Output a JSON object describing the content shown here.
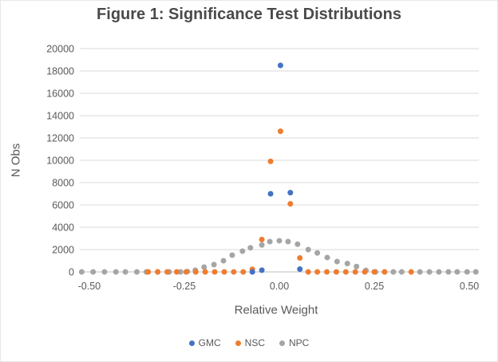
{
  "chart_data": {
    "type": "scatter",
    "title": "Figure 1: Significance Test Distributions",
    "xlabel": "Relative Weight",
    "ylabel": "N Obs",
    "xlim": [
      -0.525,
      0.525
    ],
    "ylim": [
      0,
      20000
    ],
    "x_ticks": [
      "-0.50",
      "-0.25",
      "0.00",
      "0.25",
      "0.50"
    ],
    "x_tick_values": [
      -0.5,
      -0.25,
      0,
      0.25,
      0.5
    ],
    "y_ticks": [
      "0",
      "2000",
      "4000",
      "6000",
      "8000",
      "10000",
      "12000",
      "14000",
      "16000",
      "18000",
      "20000"
    ],
    "y_tick_values": [
      0,
      2000,
      4000,
      6000,
      8000,
      10000,
      12000,
      14000,
      16000,
      18000,
      20000
    ],
    "grid": "horizontal-major",
    "legend_position": "bottom",
    "marker": "circle",
    "series": [
      {
        "name": "GMC",
        "color": "#4472C4",
        "points": [
          [
            -0.071,
            0
          ],
          [
            -0.046,
            150
          ],
          [
            -0.023,
            7000
          ],
          [
            0.003,
            18500
          ],
          [
            0.029,
            7100
          ],
          [
            0.054,
            250
          ]
        ]
      },
      {
        "name": "NSC",
        "color": "#ED7D31",
        "points": [
          [
            -0.345,
            0
          ],
          [
            -0.32,
            0
          ],
          [
            -0.295,
            0
          ],
          [
            -0.27,
            0
          ],
          [
            -0.245,
            0
          ],
          [
            -0.22,
            0
          ],
          [
            -0.195,
            0
          ],
          [
            -0.17,
            0
          ],
          [
            -0.145,
            0
          ],
          [
            -0.12,
            0
          ],
          [
            -0.095,
            0
          ],
          [
            -0.071,
            230
          ],
          [
            -0.046,
            2900
          ],
          [
            -0.023,
            9900
          ],
          [
            0.003,
            12600
          ],
          [
            0.029,
            6100
          ],
          [
            0.054,
            1250
          ],
          [
            0.076,
            0
          ],
          [
            0.1,
            0
          ],
          [
            0.125,
            0
          ],
          [
            0.15,
            0
          ],
          [
            0.175,
            0
          ],
          [
            0.2,
            0
          ],
          [
            0.225,
            0
          ],
          [
            0.25,
            0
          ],
          [
            0.277,
            0
          ],
          [
            0.347,
            0
          ]
        ]
      },
      {
        "name": "NPC",
        "color": "#A5A5A5",
        "points": [
          [
            -0.52,
            0
          ],
          [
            -0.49,
            0
          ],
          [
            -0.46,
            0
          ],
          [
            -0.43,
            0
          ],
          [
            -0.405,
            0
          ],
          [
            -0.375,
            0
          ],
          [
            -0.35,
            0
          ],
          [
            -0.32,
            0
          ],
          [
            -0.29,
            0
          ],
          [
            -0.26,
            0
          ],
          [
            -0.242,
            30
          ],
          [
            -0.221,
            150
          ],
          [
            -0.198,
            430
          ],
          [
            -0.172,
            650
          ],
          [
            -0.147,
            1000
          ],
          [
            -0.124,
            1500
          ],
          [
            -0.097,
            1860
          ],
          [
            -0.076,
            2160
          ],
          [
            -0.046,
            2410
          ],
          [
            -0.025,
            2715
          ],
          [
            0,
            2790
          ],
          [
            0.023,
            2715
          ],
          [
            0.048,
            2480
          ],
          [
            0.076,
            2000
          ],
          [
            0.1,
            1700
          ],
          [
            0.126,
            1290
          ],
          [
            0.152,
            930
          ],
          [
            0.179,
            750
          ],
          [
            0.203,
            480
          ],
          [
            0.228,
            140
          ],
          [
            0.253,
            0
          ],
          [
            0.277,
            0
          ],
          [
            0.3,
            0
          ],
          [
            0.322,
            0
          ],
          [
            0.37,
            0
          ],
          [
            0.395,
            0
          ],
          [
            0.42,
            0
          ],
          [
            0.445,
            0
          ],
          [
            0.468,
            0
          ],
          [
            0.494,
            0
          ],
          [
            0.517,
            0
          ]
        ]
      }
    ],
    "colors": {
      "gridline": "#D9D9D9",
      "axis_line": "#BFBFBF",
      "tick_text": "#595959",
      "title_text": "#4a4a4a",
      "background": "#FFFFFF"
    }
  }
}
